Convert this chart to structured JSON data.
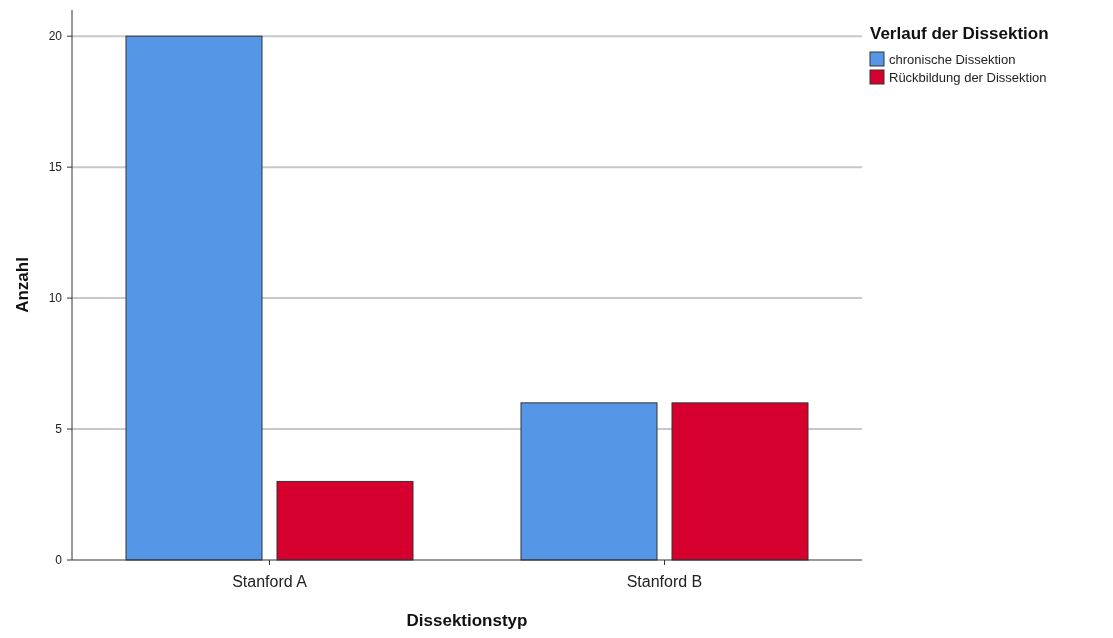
{
  "chart_data": {
    "type": "bar",
    "xlabel": "Dissektionstyp",
    "ylabel": "Anzahl",
    "legend_title": "Verlauf der Dissektion",
    "categories": [
      "Stanford A",
      "Stanford B"
    ],
    "series": [
      {
        "name": "chronische Dissektion",
        "color": "#5596e6",
        "values": [
          20,
          6
        ]
      },
      {
        "name": "Rückbildung der Dissektion",
        "color": "#d5002e",
        "values": [
          3,
          6
        ]
      }
    ],
    "ylim": [
      0,
      21
    ],
    "yticks": [
      0,
      5,
      10,
      15,
      20
    ],
    "grid": "y",
    "legend": "top right"
  }
}
